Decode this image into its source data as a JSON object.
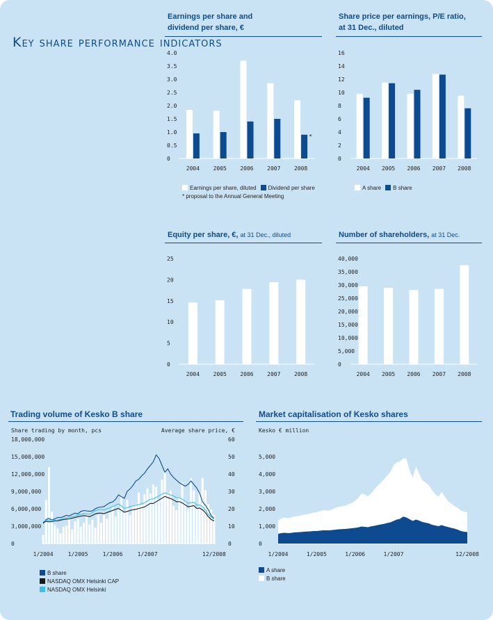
{
  "page_title": "Key share performance indicators",
  "colors": {
    "dark_blue": "#0d4a8f",
    "white": "#ffffff",
    "black": "#1a1a1a",
    "light_blue": "#3cc0ea",
    "title": "#0f4c8a",
    "background": "#c9e3f5"
  },
  "chart_data": [
    {
      "id": "eps",
      "type": "bar",
      "title_lines": [
        "Earnings per share and",
        "dividend per share, €"
      ],
      "categories": [
        "2004",
        "2005",
        "2006",
        "2007",
        "2008"
      ],
      "ylim": [
        0,
        4.0
      ],
      "yticks": [
        "0",
        "0.5",
        "1.0",
        "1.5",
        "2.0",
        "2.5",
        "3.0",
        "3.5",
        "4.0"
      ],
      "series": [
        {
          "name": "Earnings per share, diluted",
          "color": "#ffffff",
          "values": [
            1.84,
            1.8,
            3.7,
            2.85,
            2.2
          ]
        },
        {
          "name": "Dividend per share",
          "color": "#0d4a8f",
          "values": [
            0.95,
            1.0,
            1.4,
            1.5,
            0.9
          ]
        }
      ],
      "marker": "*",
      "footnote": "* proposal to the Annual General Meeting"
    },
    {
      "id": "pe",
      "type": "bar",
      "title_lines": [
        "Share price per earnings, P/E ratio,",
        "at 31 Dec., diluted"
      ],
      "categories": [
        "2004",
        "2005",
        "2006",
        "2007",
        "2008"
      ],
      "ylim": [
        0,
        16
      ],
      "yticks": [
        "0",
        "2",
        "4",
        "6",
        "8",
        "10",
        "12",
        "14",
        "16"
      ],
      "series": [
        {
          "name": "A share",
          "color": "#ffffff",
          "values": [
            9.8,
            11.5,
            9.8,
            12.8,
            9.5
          ]
        },
        {
          "name": "B share",
          "color": "#0d4a8f",
          "values": [
            9.2,
            11.4,
            10.4,
            12.7,
            7.6
          ]
        }
      ]
    },
    {
      "id": "equity",
      "type": "bar",
      "title_main": "Equity per share, €,",
      "title_sub": "at 31 Dec., diluted",
      "categories": [
        "2004",
        "2005",
        "2006",
        "2007",
        "2008"
      ],
      "ylim": [
        0,
        25
      ],
      "yticks": [
        "0",
        "5",
        "10",
        "15",
        "20",
        "25"
      ],
      "series": [
        {
          "color": "#ffffff",
          "values": [
            14.6,
            15.1,
            17.8,
            19.4,
            20.0
          ]
        }
      ]
    },
    {
      "id": "holders",
      "type": "bar",
      "title_main": "Number of shareholders,",
      "title_sub": "at 31 Dec.",
      "categories": [
        "2004",
        "2005",
        "2006",
        "2007",
        "2008"
      ],
      "ylim": [
        0,
        40000
      ],
      "yticks": [
        "0",
        "5,000",
        "10,000",
        "15,000",
        "20,000",
        "25,000",
        "30,000",
        "35,000",
        "40,000"
      ],
      "series": [
        {
          "color": "#ffffff",
          "values": [
            29500,
            28900,
            28100,
            28500,
            37500
          ]
        }
      ]
    },
    {
      "id": "volume",
      "type": "bar+line",
      "title": "Trading volume of Kesko B share",
      "left_axis_label": "Share trading by month, pcs",
      "right_axis_label": "Average share price, €",
      "ylim_left": [
        0,
        18000000
      ],
      "yticks_left": [
        "0",
        "3,000,000",
        "6,000,000",
        "9,000,000",
        "12,000,000",
        "15,000,000",
        "18,000,000"
      ],
      "ylim_right": [
        0,
        60
      ],
      "yticks_right": [
        "0",
        "10",
        "20",
        "30",
        "40",
        "50",
        "60"
      ],
      "x_ticks": [
        "1/2004",
        "1/2005",
        "1/2006",
        "1/2007",
        "12/2008"
      ],
      "x": [
        "2004-01",
        "2004-02",
        "2004-03",
        "2004-04",
        "2004-05",
        "2004-06",
        "2004-07",
        "2004-08",
        "2004-09",
        "2004-10",
        "2004-11",
        "2004-12",
        "2005-01",
        "2005-02",
        "2005-03",
        "2005-04",
        "2005-05",
        "2005-06",
        "2005-07",
        "2005-08",
        "2005-09",
        "2005-10",
        "2005-11",
        "2005-12",
        "2006-01",
        "2006-02",
        "2006-03",
        "2006-04",
        "2006-05",
        "2006-06",
        "2006-07",
        "2006-08",
        "2006-09",
        "2006-10",
        "2006-11",
        "2006-12",
        "2007-01",
        "2007-02",
        "2007-03",
        "2007-04",
        "2007-05",
        "2007-06",
        "2007-07",
        "2007-08",
        "2007-09",
        "2007-10",
        "2007-11",
        "2007-12",
        "2008-01",
        "2008-02",
        "2008-03",
        "2008-04",
        "2008-05",
        "2008-06",
        "2008-07",
        "2008-08",
        "2008-09",
        "2008-10",
        "2008-11",
        "2008-12"
      ],
      "volume": [
        1500000,
        7500000,
        13200000,
        5500000,
        3200000,
        2600000,
        1800000,
        2900000,
        3100000,
        4500000,
        2500000,
        3800000,
        4300000,
        2900000,
        3600000,
        4800000,
        3300000,
        4100000,
        2700000,
        4900000,
        3600000,
        5000000,
        4300000,
        5300000,
        6400000,
        4700000,
        5900000,
        8300000,
        5300000,
        7600000,
        4900000,
        6600000,
        6700000,
        8800000,
        6700000,
        8500000,
        9500000,
        8600000,
        10200000,
        9800000,
        7600000,
        11000000,
        12500000,
        8700000,
        9100000,
        6500000,
        5800000,
        7900000,
        10500000,
        7300000,
        6000000,
        11300000,
        9200000,
        6200000,
        8800000,
        11300000,
        9200000,
        6800000,
        5900000,
        5000000
      ],
      "series": [
        {
          "name": "B share",
          "color": "#0d4a8f",
          "values": [
            11.5,
            13.8,
            14.5,
            13.5,
            14.2,
            15.0,
            15.0,
            15.5,
            16.2,
            15.9,
            16.8,
            17.5,
            17.2,
            18.5,
            19.0,
            18.8,
            18.6,
            18.8,
            20.0,
            20.8,
            21.0,
            21.3,
            22.5,
            23.5,
            24.0,
            25.5,
            28.0,
            27.0,
            26.0,
            30.0,
            31.5,
            33.5,
            36.0,
            37.0,
            39.0,
            40.5,
            43.0,
            45.0,
            47.0,
            51.0,
            49.0,
            45.0,
            41.0,
            43.0,
            40.0,
            38.0,
            36.5,
            35.0,
            34.0,
            33.0,
            34.0,
            36.0,
            34.0,
            32.0,
            29.0,
            24.0,
            22.0,
            19.5,
            16.0,
            14.5
          ]
        },
        {
          "name": "NASDAQ OMX Helsinki CAP",
          "color": "#1a1a1a",
          "values": [
            12.0,
            12.8,
            12.5,
            12.6,
            13.0,
            13.0,
            13.5,
            13.8,
            14.0,
            14.2,
            14.6,
            15.0,
            15.5,
            15.8,
            16.1,
            15.8,
            15.5,
            16.2,
            17.1,
            17.5,
            17.5,
            17.2,
            17.9,
            18.5,
            19.1,
            19.7,
            20.2,
            19.1,
            18.1,
            18.5,
            19.0,
            19.5,
            19.7,
            20.2,
            20.6,
            21.1,
            22.1,
            23.1,
            23.1,
            24.1,
            25.1,
            26.1,
            27.1,
            26.5,
            25.9,
            25.1,
            24.1,
            24.1,
            23.4,
            22.3,
            21.2,
            21.5,
            21.8,
            20.2,
            20.4,
            19.4,
            17.8,
            15.4,
            13.8,
            13.0
          ]
        },
        {
          "name": "NASDAQ OMX Helsinki",
          "color": "#3cc0ea",
          "values": [
            12.5,
            13.4,
            13.5,
            13.3,
            13.5,
            13.6,
            14.0,
            14.4,
            14.6,
            15.0,
            15.4,
            15.8,
            16.5,
            16.8,
            17.2,
            17.0,
            17.0,
            17.8,
            18.9,
            19.5,
            19.6,
            19.3,
            20.0,
            20.5,
            21.3,
            22.0,
            22.8,
            21.6,
            20.3,
            20.6,
            21.3,
            21.7,
            22.0,
            22.4,
            22.9,
            23.5,
            24.6,
            25.6,
            25.6,
            26.6,
            27.5,
            28.4,
            29.2,
            28.6,
            28.0,
            27.4,
            26.4,
            26.4,
            25.5,
            24.3,
            23.2,
            23.5,
            23.8,
            22.1,
            22.2,
            21.2,
            19.4,
            16.8,
            15.2,
            14.2
          ]
        }
      ]
    },
    {
      "id": "marketcap",
      "type": "area",
      "title": "Market capitalisation of Kesko shares",
      "y_axis_label": "Kesko € million",
      "ylim": [
        0,
        6000
      ],
      "yticks": [
        "0",
        "1,000",
        "2,000",
        "3,000",
        "4,000",
        "5,000"
      ],
      "x_ticks": [
        "1/2004",
        "1/2005",
        "1/2006",
        "1/2007",
        "12/2008"
      ],
      "x": [
        "2004-01",
        "2004-02",
        "2004-03",
        "2004-04",
        "2004-05",
        "2004-06",
        "2004-07",
        "2004-08",
        "2004-09",
        "2004-10",
        "2004-11",
        "2004-12",
        "2005-01",
        "2005-02",
        "2005-03",
        "2005-04",
        "2005-05",
        "2005-06",
        "2005-07",
        "2005-08",
        "2005-09",
        "2005-10",
        "2005-11",
        "2005-12",
        "2006-01",
        "2006-02",
        "2006-03",
        "2006-04",
        "2006-05",
        "2006-06",
        "2006-07",
        "2006-08",
        "2006-09",
        "2006-10",
        "2006-11",
        "2006-12",
        "2007-01",
        "2007-02",
        "2007-03",
        "2007-04",
        "2007-05",
        "2007-06",
        "2007-07",
        "2007-08",
        "2007-09",
        "2007-10",
        "2007-11",
        "2007-12",
        "2008-01",
        "2008-02",
        "2008-03",
        "2008-04",
        "2008-05",
        "2008-06",
        "2008-07",
        "2008-08",
        "2008-09",
        "2008-10",
        "2008-11",
        "2008-12"
      ],
      "series": [
        {
          "name": "A share",
          "color": "#0d4a8f",
          "values": [
            560,
            600,
            620,
            600,
            610,
            640,
            650,
            660,
            680,
            690,
            700,
            720,
            720,
            740,
            760,
            760,
            760,
            780,
            800,
            820,
            830,
            840,
            860,
            880,
            900,
            930,
            980,
            960,
            940,
            990,
            1020,
            1060,
            1100,
            1130,
            1180,
            1220,
            1300,
            1380,
            1420,
            1550,
            1500,
            1400,
            1300,
            1380,
            1320,
            1240,
            1200,
            1160,
            1080,
            1040,
            1000,
            1060,
            1000,
            950,
            900,
            860,
            800,
            720,
            680,
            660
          ]
        },
        {
          "name": "B share",
          "color": "#ffffff",
          "values": [
            760,
            840,
            880,
            860,
            880,
            920,
            920,
            960,
            980,
            1000,
            1030,
            1060,
            1080,
            1120,
            1160,
            1140,
            1140,
            1200,
            1260,
            1300,
            1320,
            1340,
            1400,
            1450,
            1560,
            1700,
            1900,
            1860,
            1780,
            1900,
            2080,
            2260,
            2400,
            2560,
            2720,
            2900,
            3200,
            3300,
            3300,
            3350,
            3380,
            2800,
            2500,
            3050,
            2700,
            2400,
            2300,
            2200,
            2000,
            1800,
            1700,
            1900,
            1700,
            1500,
            1400,
            1300,
            1250,
            1180,
            1150,
            1140
          ]
        }
      ]
    }
  ],
  "labels": {
    "pe_a": "A share",
    "pe_b": "B share",
    "mc_a": "A share",
    "mc_b": "B share",
    "vol_b": "B share",
    "vol_cap": "NASDAQ OMX Helsinki CAP",
    "vol_hel": "NASDAQ OMX Helsinki"
  }
}
